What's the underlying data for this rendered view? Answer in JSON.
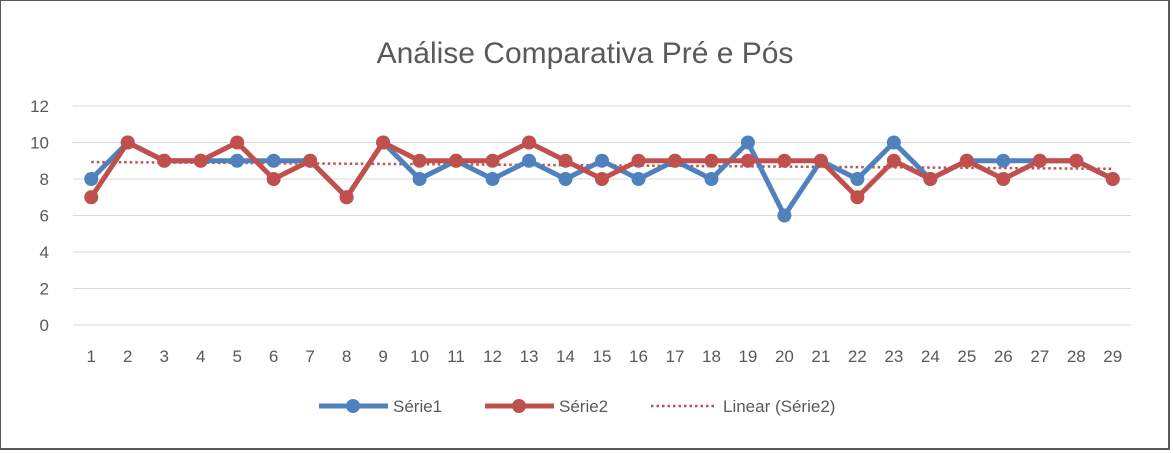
{
  "chart_data": {
    "type": "line",
    "title": "Análise Comparativa Pré e Pós",
    "xlabel": "",
    "ylabel": "",
    "ylim": [
      0,
      12
    ],
    "yticks": [
      0,
      2,
      4,
      6,
      8,
      10,
      12
    ],
    "grid": true,
    "legend_position": "bottom",
    "categories": [
      1,
      2,
      3,
      4,
      5,
      6,
      7,
      8,
      9,
      10,
      11,
      12,
      13,
      14,
      15,
      16,
      17,
      18,
      19,
      20,
      21,
      22,
      23,
      24,
      25,
      26,
      27,
      28,
      29
    ],
    "series": [
      {
        "name": "Série1",
        "color": "#4F81BD",
        "values": [
          8,
          10,
          9,
          9,
          9,
          9,
          9,
          7,
          10,
          8,
          9,
          8,
          9,
          8,
          9,
          8,
          9,
          8,
          10,
          6,
          9,
          8,
          10,
          8,
          9,
          9,
          9,
          9,
          8
        ]
      },
      {
        "name": "Série2",
        "color": "#C0504D",
        "values": [
          7,
          10,
          9,
          9,
          10,
          8,
          9,
          7,
          10,
          9,
          9,
          9,
          10,
          9,
          8,
          9,
          9,
          9,
          9,
          9,
          9,
          7,
          9,
          8,
          9,
          8,
          9,
          9,
          8
        ]
      }
    ],
    "trendline": {
      "name": "Linear (Série2)",
      "color": "#C0504D",
      "style": "dotted",
      "start": 8.93,
      "end": 8.56
    }
  }
}
